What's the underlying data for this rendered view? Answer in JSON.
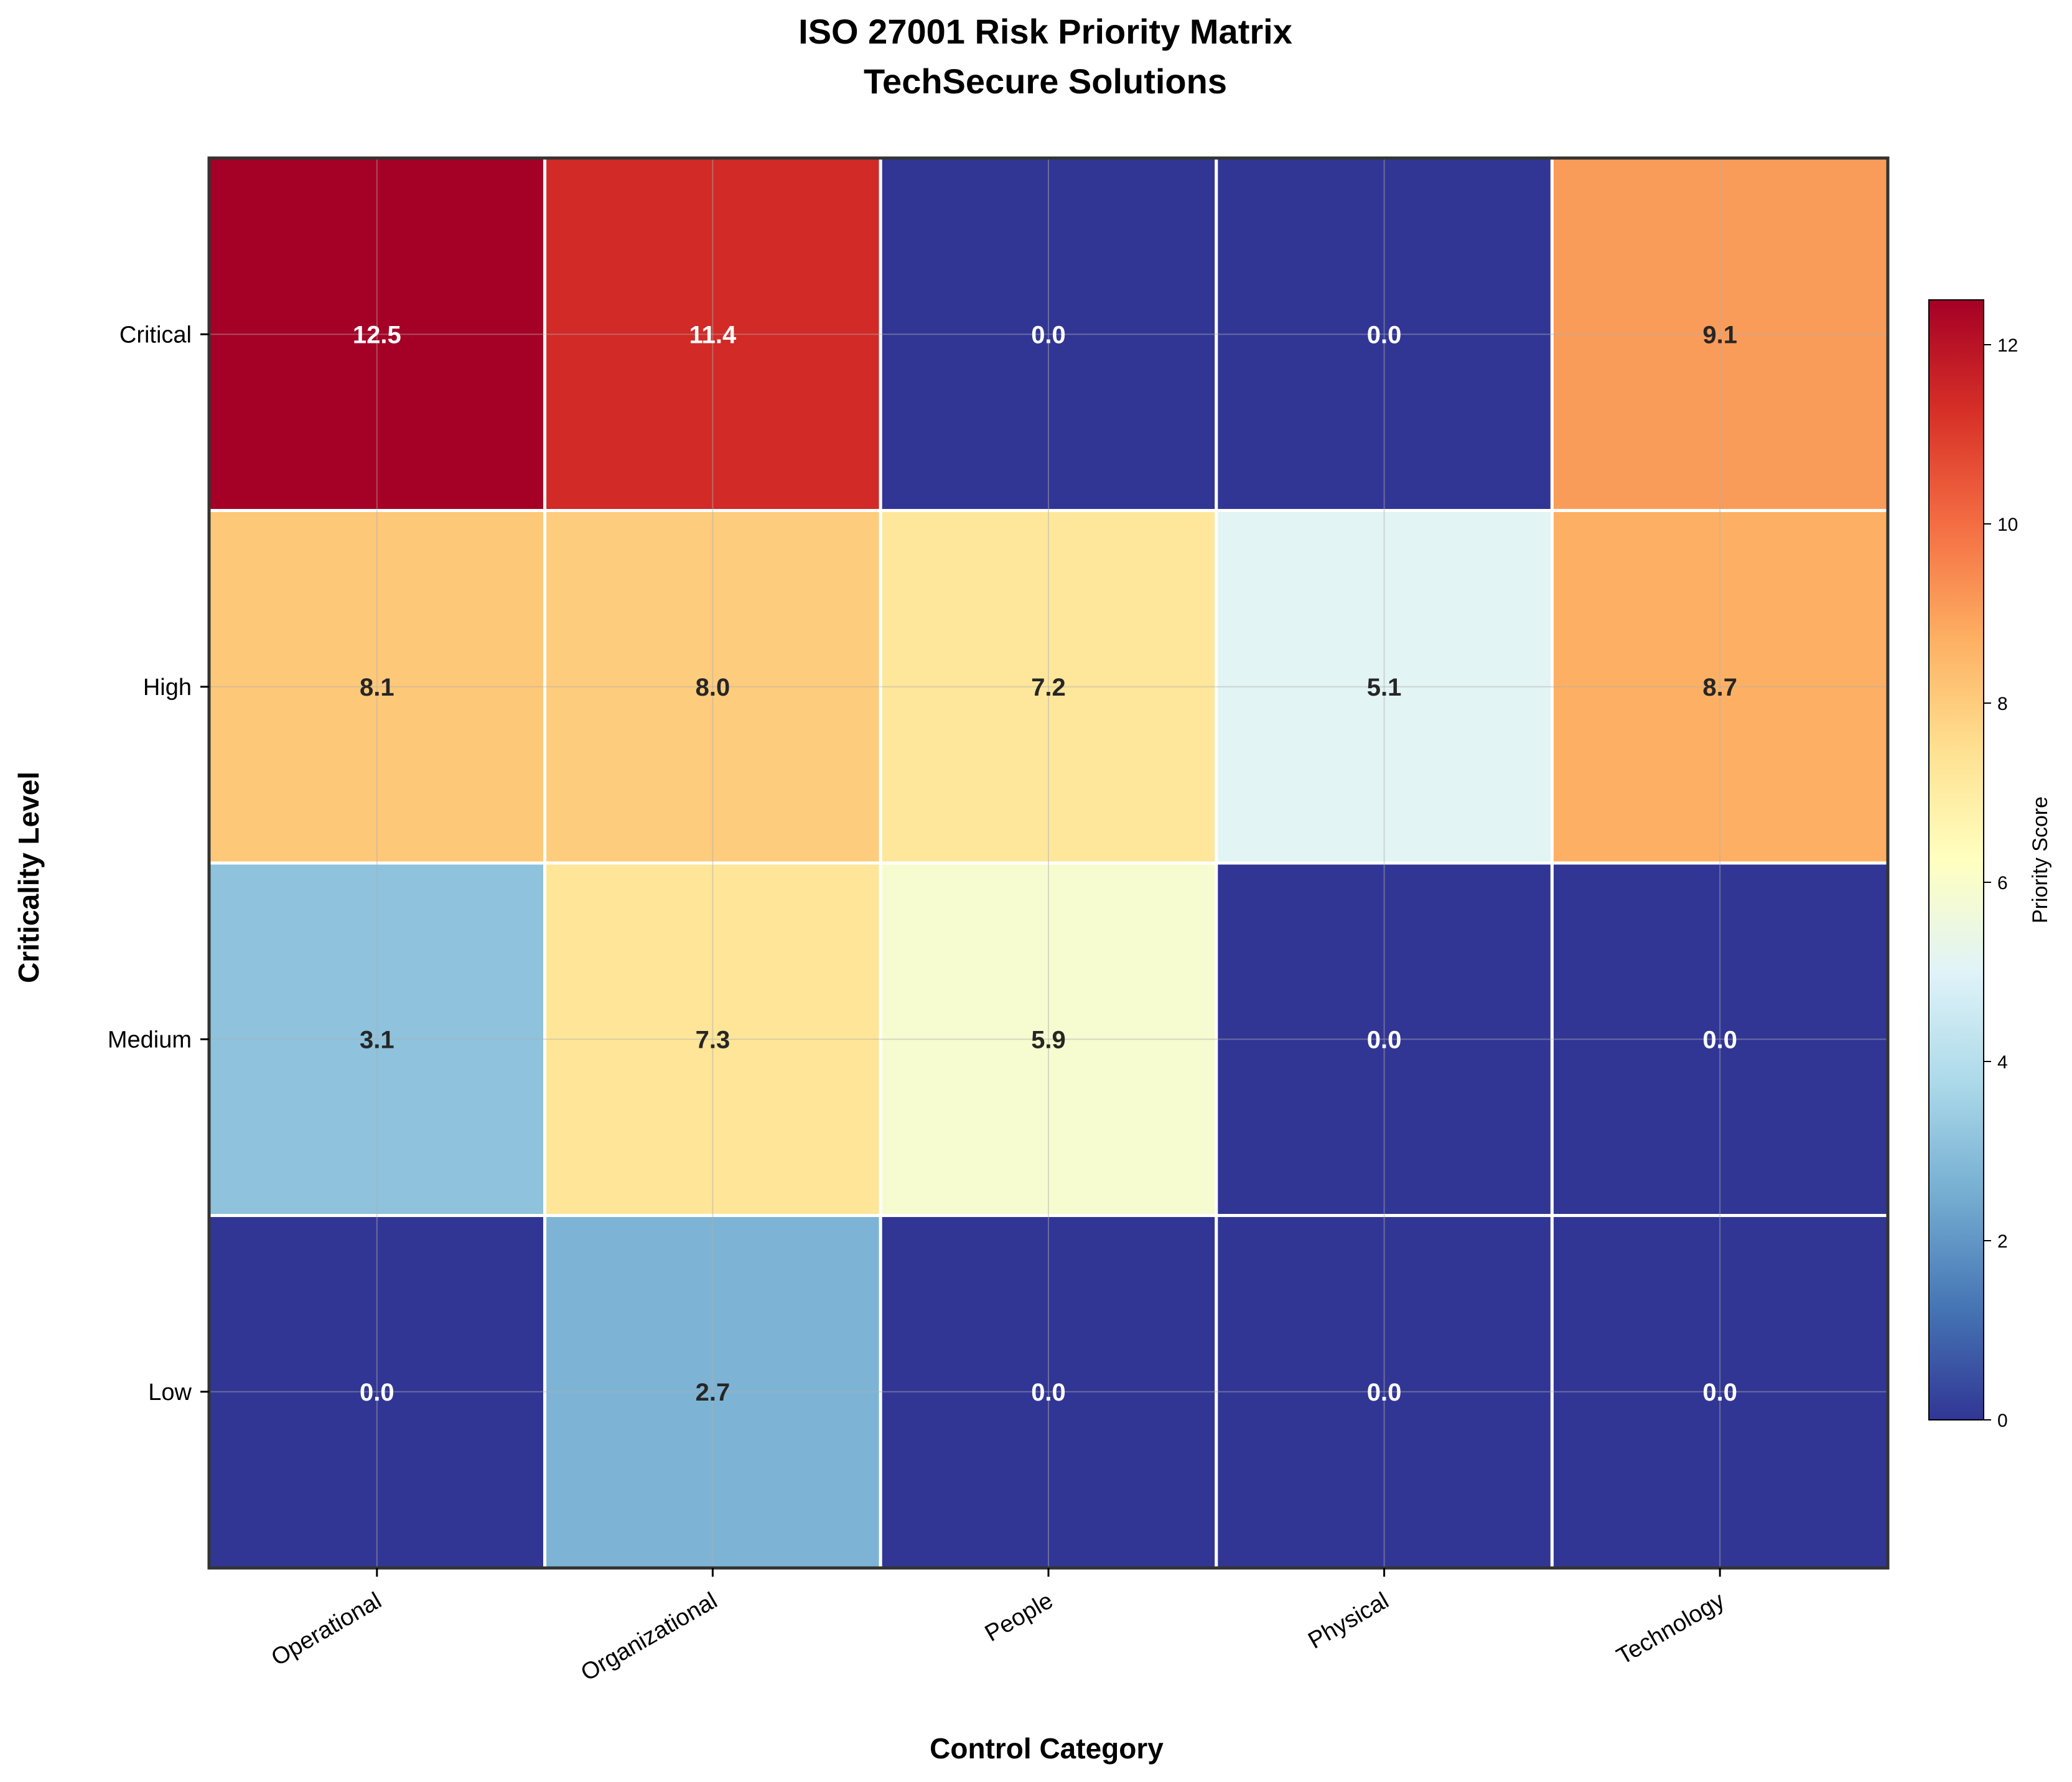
{
  "chart_data": {
    "type": "heatmap",
    "title": [
      "ISO 27001 Risk Priority Matrix",
      "TechSecure Solutions"
    ],
    "xlabel": "Control Category",
    "ylabel": "Criticality Level",
    "x_categories": [
      "Operational",
      "Organizational",
      "People",
      "Physical",
      "Technology"
    ],
    "y_categories": [
      "Critical",
      "High",
      "Medium",
      "Low"
    ],
    "values": [
      [
        12.5,
        11.4,
        0.0,
        0.0,
        9.1
      ],
      [
        8.1,
        8.0,
        7.2,
        5.1,
        8.7
      ],
      [
        3.1,
        7.3,
        5.9,
        0.0,
        0.0
      ],
      [
        0.0,
        2.7,
        0.0,
        0.0,
        0.0
      ]
    ],
    "value_format": "one decimal",
    "colorbar": {
      "label": "Priority Score",
      "min": 0,
      "max": 12.5,
      "ticks": [
        0,
        2,
        4,
        6,
        8,
        10,
        12
      ],
      "colormap": "RdYlBu_r"
    },
    "grid": true,
    "colors": {
      "cell_border": "#ffffff",
      "frame": "#333333",
      "grid": "#b0b0b0",
      "text_dark": "#262626",
      "text_light": "#ffffff"
    }
  }
}
